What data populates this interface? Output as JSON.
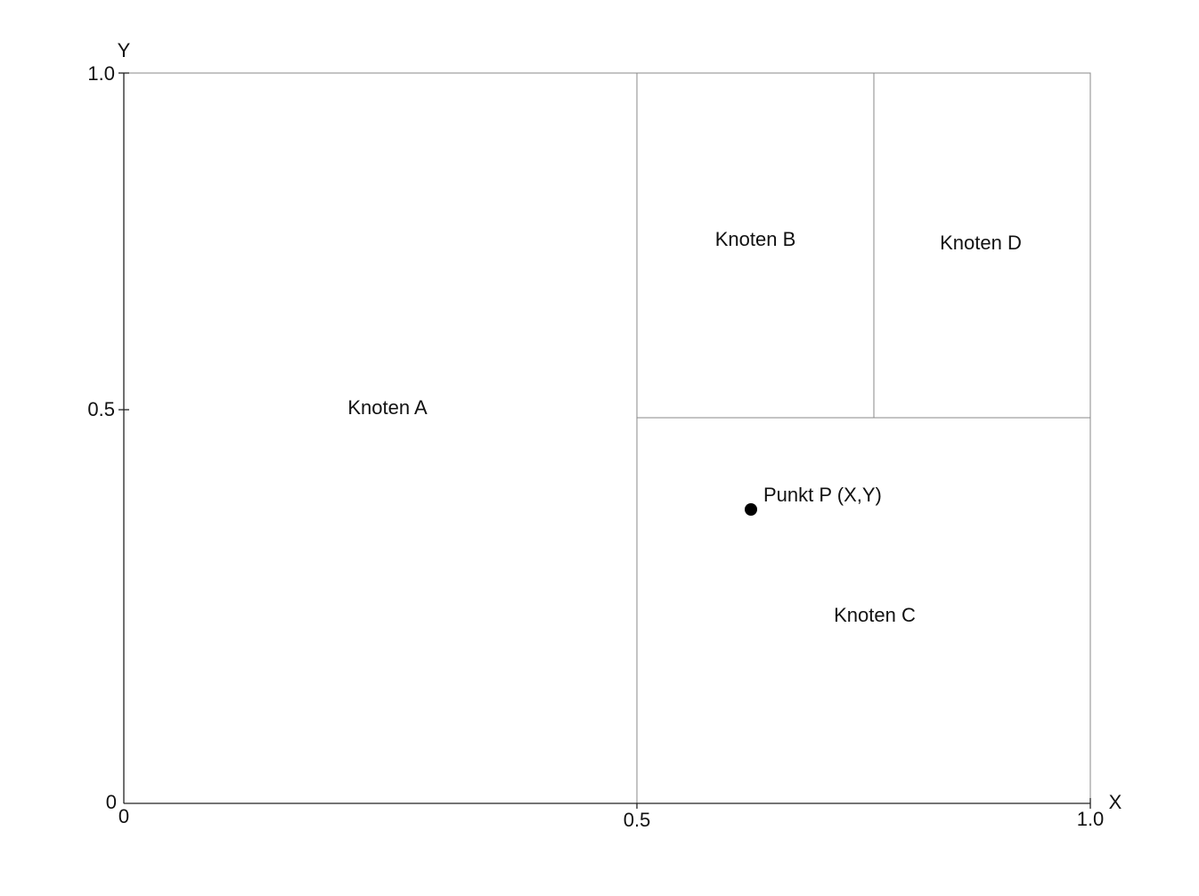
{
  "axes": {
    "x_label": "X",
    "y_label": "Y",
    "x_ticks": [
      "0",
      "0.5",
      "1.0"
    ],
    "y_ticks": [
      "0",
      "0.5",
      "1.0"
    ]
  },
  "nodes": [
    {
      "label": "Knoten A"
    },
    {
      "label": "Knoten B"
    },
    {
      "label": "Knoten C"
    },
    {
      "label": "Knoten D"
    }
  ],
  "point": {
    "label": "Punkt P (X,Y)"
  }
}
